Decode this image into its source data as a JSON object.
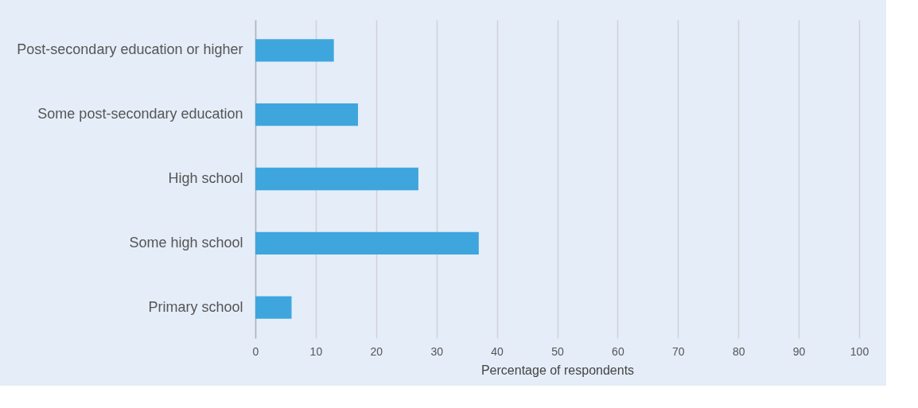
{
  "chart_data": {
    "type": "bar",
    "orientation": "horizontal",
    "xlabel": "Percentage of respondents",
    "categories": [
      "Post-secondary education or higher",
      "Some post-secondary education",
      "High school",
      "Some high school",
      "Primary school"
    ],
    "values": [
      13,
      17,
      27,
      37,
      6
    ],
    "color": "#3ea6dd",
    "xlim": [
      0,
      100
    ],
    "xticks": [
      0,
      10,
      20,
      30,
      40,
      50,
      60,
      70,
      80,
      90,
      100
    ],
    "grid": "x"
  }
}
